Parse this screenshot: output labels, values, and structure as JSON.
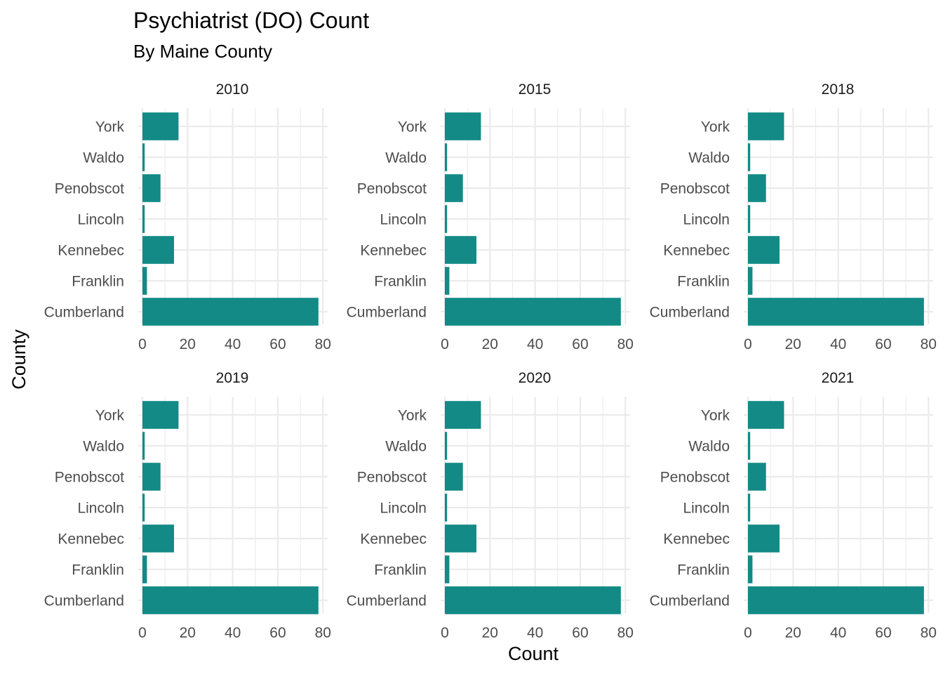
{
  "chart_data": {
    "type": "bar",
    "orientation": "horizontal",
    "title": "Psychiatrist (DO) Count",
    "subtitle": "By Maine County",
    "xlabel": "Count",
    "ylabel": "County",
    "xlim": [
      0,
      80
    ],
    "x_ticks": [
      0,
      20,
      40,
      60,
      80
    ],
    "grid": true,
    "bar_color": "#138a86",
    "categories": [
      "Cumberland",
      "Franklin",
      "Kennebec",
      "Lincoln",
      "Penobscot",
      "Waldo",
      "York"
    ],
    "facets": [
      {
        "label": "2010",
        "values": [
          78,
          2,
          14,
          1,
          8,
          1,
          16
        ]
      },
      {
        "label": "2015",
        "values": [
          78,
          2,
          14,
          1,
          8,
          1,
          16
        ]
      },
      {
        "label": "2018",
        "values": [
          78,
          2,
          14,
          1,
          8,
          1,
          16
        ]
      },
      {
        "label": "2019",
        "values": [
          78,
          2,
          14,
          1,
          8,
          1,
          16
        ]
      },
      {
        "label": "2020",
        "values": [
          78,
          2,
          14,
          1,
          8,
          1,
          16
        ]
      },
      {
        "label": "2021",
        "values": [
          78,
          2,
          14,
          1,
          8,
          1,
          16
        ]
      }
    ]
  }
}
